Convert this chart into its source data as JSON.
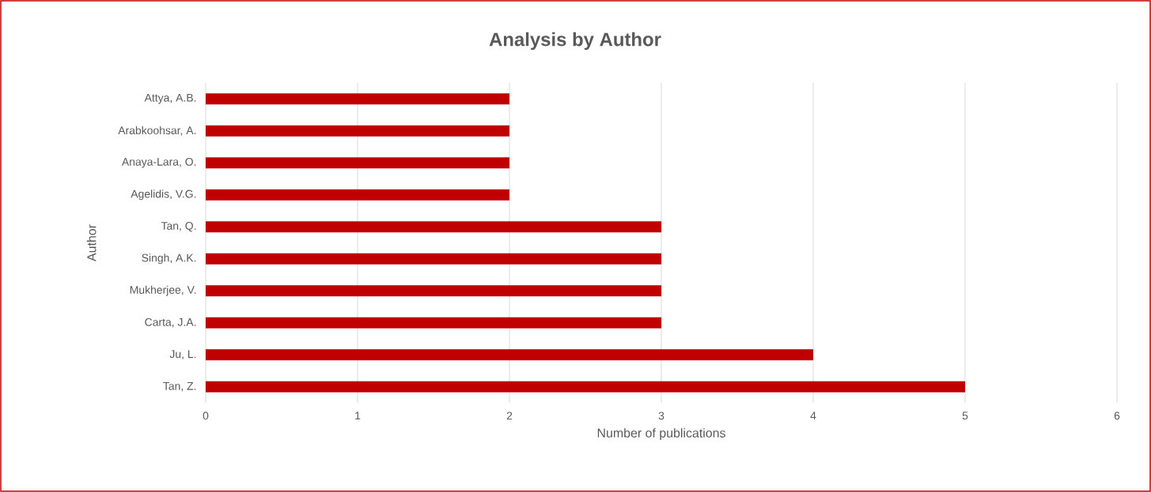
{
  "chart_data": {
    "type": "bar",
    "orientation": "horizontal",
    "title": "Analysis by Author",
    "xlabel": "Number of publications",
    "ylabel": "Author",
    "categories": [
      "Attya, A.B.",
      "Arabkoohsar, A.",
      "Anaya-Lara, O.",
      "Agelidis, V.G.",
      "Tan, Q.",
      "Singh, A.K.",
      "Mukherjee, V.",
      "Carta, J.A.",
      "Ju, L.",
      "Tan, Z."
    ],
    "values": [
      2,
      2,
      2,
      2,
      3,
      3,
      3,
      3,
      4,
      5
    ],
    "color": "#c00000",
    "xlim": [
      0,
      6
    ],
    "xticks": [
      0,
      1,
      2,
      3,
      4,
      5,
      6
    ],
    "grid": "x"
  }
}
